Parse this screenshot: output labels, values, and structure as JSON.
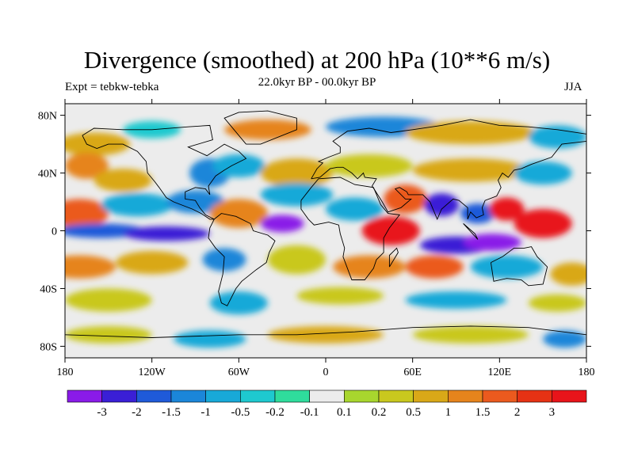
{
  "title": "Divergence (smoothed) at 200 hPa (10**6 m/s)",
  "subtitle_left": "Expt = tebkw-tebka",
  "subtitle_center": "22.0kyr BP - 00.0kyr BP",
  "subtitle_right": "JJA",
  "axes": {
    "x_ticks": [
      "180",
      "120W",
      "60W",
      "0",
      "60E",
      "120E",
      "180"
    ],
    "y_ticks": [
      "80N",
      "40N",
      "0",
      "40S",
      "80S"
    ]
  },
  "colorbar": {
    "labels": [
      "-3",
      "-2",
      "-1.5",
      "-1",
      "-0.5",
      "-0.2",
      "-0.1",
      "0.1",
      "0.2",
      "0.5",
      "1",
      "1.5",
      "2",
      "3"
    ],
    "colors": [
      "#8a1be8",
      "#3a1fd6",
      "#1f5ad9",
      "#1b86d9",
      "#18a9d8",
      "#1ec9cf",
      "#2fdc9c",
      "#ececec",
      "#a8d62e",
      "#c9c81e",
      "#d9a818",
      "#e6841c",
      "#eb5a1e",
      "#e63214",
      "#e8141a"
    ]
  },
  "colors": {
    "background": "#ececec",
    "coastline": "#000000"
  },
  "blobs": [
    {
      "lon": -160,
      "lat": 60,
      "rx": 25,
      "ry": 8,
      "c": 10
    },
    {
      "lon": -120,
      "lat": 70,
      "rx": 20,
      "ry": 6,
      "c": 5
    },
    {
      "lon": -40,
      "lat": 70,
      "rx": 30,
      "ry": 7,
      "c": 11
    },
    {
      "lon": 40,
      "lat": 72,
      "rx": 40,
      "ry": 7,
      "c": 3
    },
    {
      "lon": 100,
      "lat": 68,
      "rx": 45,
      "ry": 8,
      "c": 10
    },
    {
      "lon": 160,
      "lat": 65,
      "rx": 20,
      "ry": 8,
      "c": 4
    },
    {
      "lon": -165,
      "lat": 45,
      "rx": 15,
      "ry": 9,
      "c": 11
    },
    {
      "lon": -140,
      "lat": 35,
      "rx": 20,
      "ry": 8,
      "c": 10
    },
    {
      "lon": -80,
      "lat": 40,
      "rx": 14,
      "ry": 10,
      "c": 3
    },
    {
      "lon": -60,
      "lat": 45,
      "rx": 18,
      "ry": 8,
      "c": 4
    },
    {
      "lon": -20,
      "lat": 40,
      "rx": 25,
      "ry": 10,
      "c": 10
    },
    {
      "lon": 30,
      "lat": 45,
      "rx": 30,
      "ry": 8,
      "c": 9
    },
    {
      "lon": 100,
      "lat": 42,
      "rx": 40,
      "ry": 8,
      "c": 10
    },
    {
      "lon": 150,
      "lat": 40,
      "rx": 20,
      "ry": 8,
      "c": 4
    },
    {
      "lon": -170,
      "lat": 12,
      "rx": 20,
      "ry": 10,
      "c": 12
    },
    {
      "lon": -130,
      "lat": 18,
      "rx": 25,
      "ry": 8,
      "c": 4
    },
    {
      "lon": -90,
      "lat": 20,
      "rx": 20,
      "ry": 8,
      "c": 3
    },
    {
      "lon": -60,
      "lat": 12,
      "rx": 20,
      "ry": 10,
      "c": 11
    },
    {
      "lon": -20,
      "lat": 25,
      "rx": 25,
      "ry": 8,
      "c": 4
    },
    {
      "lon": 20,
      "lat": 15,
      "rx": 20,
      "ry": 8,
      "c": 4
    },
    {
      "lon": 55,
      "lat": 22,
      "rx": 15,
      "ry": 10,
      "c": 12
    },
    {
      "lon": 80,
      "lat": 18,
      "rx": 12,
      "ry": 8,
      "c": 1
    },
    {
      "lon": 105,
      "lat": 12,
      "rx": 12,
      "ry": 7,
      "c": 2
    },
    {
      "lon": 125,
      "lat": 15,
      "rx": 12,
      "ry": 8,
      "c": 14
    },
    {
      "lon": 150,
      "lat": 5,
      "rx": 20,
      "ry": 10,
      "c": 14
    },
    {
      "lon": -155,
      "lat": 0,
      "rx": 30,
      "ry": 5,
      "c": 2
    },
    {
      "lon": -110,
      "lat": -2,
      "rx": 30,
      "ry": 5,
      "c": 1
    },
    {
      "lon": -30,
      "lat": 5,
      "rx": 15,
      "ry": 6,
      "c": 0
    },
    {
      "lon": 45,
      "lat": 0,
      "rx": 20,
      "ry": 10,
      "c": 14
    },
    {
      "lon": 90,
      "lat": -10,
      "rx": 25,
      "ry": 6,
      "c": 1
    },
    {
      "lon": 115,
      "lat": -8,
      "rx": 20,
      "ry": 6,
      "c": 0
    },
    {
      "lon": -170,
      "lat": -25,
      "rx": 25,
      "ry": 8,
      "c": 11
    },
    {
      "lon": -120,
      "lat": -22,
      "rx": 25,
      "ry": 8,
      "c": 10
    },
    {
      "lon": -70,
      "lat": -20,
      "rx": 15,
      "ry": 8,
      "c": 3
    },
    {
      "lon": -20,
      "lat": -20,
      "rx": 20,
      "ry": 10,
      "c": 9
    },
    {
      "lon": 30,
      "lat": -25,
      "rx": 25,
      "ry": 8,
      "c": 11
    },
    {
      "lon": 75,
      "lat": -25,
      "rx": 20,
      "ry": 8,
      "c": 12
    },
    {
      "lon": 125,
      "lat": -25,
      "rx": 25,
      "ry": 8,
      "c": 4
    },
    {
      "lon": 170,
      "lat": -30,
      "rx": 15,
      "ry": 8,
      "c": 10
    },
    {
      "lon": -150,
      "lat": -48,
      "rx": 30,
      "ry": 8,
      "c": 9
    },
    {
      "lon": -60,
      "lat": -50,
      "rx": 20,
      "ry": 8,
      "c": 4
    },
    {
      "lon": 10,
      "lat": -45,
      "rx": 30,
      "ry": 6,
      "c": 9
    },
    {
      "lon": 90,
      "lat": -48,
      "rx": 35,
      "ry": 6,
      "c": 4
    },
    {
      "lon": 160,
      "lat": -50,
      "rx": 20,
      "ry": 6,
      "c": 9
    },
    {
      "lon": -150,
      "lat": -72,
      "rx": 30,
      "ry": 6,
      "c": 9
    },
    {
      "lon": -80,
      "lat": -75,
      "rx": 25,
      "ry": 6,
      "c": 4
    },
    {
      "lon": 0,
      "lat": -72,
      "rx": 40,
      "ry": 6,
      "c": 10
    },
    {
      "lon": 100,
      "lat": -72,
      "rx": 40,
      "ry": 6,
      "c": 9
    },
    {
      "lon": 165,
      "lat": -75,
      "rx": 15,
      "ry": 6,
      "c": 3
    }
  ],
  "land": [
    [
      [
        -168,
        66
      ],
      [
        -160,
        71
      ],
      [
        -140,
        70
      ],
      [
        -120,
        70
      ],
      [
        -95,
        72
      ],
      [
        -80,
        73
      ],
      [
        -78,
        63
      ],
      [
        -95,
        58
      ],
      [
        -82,
        52
      ],
      [
        -70,
        60
      ],
      [
        -60,
        55
      ],
      [
        -55,
        50
      ],
      [
        -65,
        45
      ],
      [
        -70,
        42
      ],
      [
        -76,
        38
      ],
      [
        -81,
        31
      ],
      [
        -80,
        25
      ],
      [
        -83,
        29
      ],
      [
        -90,
        30
      ],
      [
        -97,
        27
      ],
      [
        -97,
        22
      ],
      [
        -90,
        21
      ],
      [
        -87,
        16
      ],
      [
        -83,
        11
      ],
      [
        -77,
        8
      ],
      [
        -80,
        8
      ],
      [
        -86,
        12
      ],
      [
        -92,
        15
      ],
      [
        -105,
        20
      ],
      [
        -110,
        23
      ],
      [
        -115,
        30
      ],
      [
        -118,
        34
      ],
      [
        -123,
        40
      ],
      [
        -124,
        48
      ],
      [
        -130,
        55
      ],
      [
        -140,
        60
      ],
      [
        -150,
        60
      ],
      [
        -158,
        57
      ],
      [
        -165,
        60
      ],
      [
        -168,
        66
      ]
    ],
    [
      [
        -77,
        8
      ],
      [
        -72,
        12
      ],
      [
        -62,
        10
      ],
      [
        -52,
        5
      ],
      [
        -50,
        0
      ],
      [
        -40,
        -3
      ],
      [
        -35,
        -7
      ],
      [
        -39,
        -15
      ],
      [
        -41,
        -22
      ],
      [
        -48,
        -27
      ],
      [
        -58,
        -35
      ],
      [
        -62,
        -40
      ],
      [
        -65,
        -46
      ],
      [
        -68,
        -52
      ],
      [
        -72,
        -50
      ],
      [
        -74,
        -42
      ],
      [
        -71,
        -30
      ],
      [
        -70,
        -18
      ],
      [
        -76,
        -12
      ],
      [
        -81,
        -5
      ],
      [
        -80,
        2
      ],
      [
        -77,
        8
      ]
    ],
    [
      [
        -55,
        60
      ],
      [
        -45,
        60
      ],
      [
        -20,
        70
      ],
      [
        -20,
        78
      ],
      [
        -40,
        83
      ],
      [
        -60,
        82
      ],
      [
        -70,
        78
      ],
      [
        -55,
        60
      ]
    ],
    [
      [
        -10,
        36
      ],
      [
        -6,
        43
      ],
      [
        -2,
        47
      ],
      [
        -5,
        48
      ],
      [
        2,
        51
      ],
      [
        10,
        54
      ],
      [
        10,
        58
      ],
      [
        5,
        62
      ],
      [
        15,
        69
      ],
      [
        30,
        71
      ],
      [
        45,
        68
      ],
      [
        60,
        70
      ],
      [
        80,
        73
      ],
      [
        100,
        77
      ],
      [
        120,
        73
      ],
      [
        140,
        72
      ],
      [
        160,
        70
      ],
      [
        180,
        67
      ],
      [
        180,
        62
      ],
      [
        163,
        60
      ],
      [
        156,
        51
      ],
      [
        142,
        46
      ],
      [
        135,
        43
      ],
      [
        130,
        42
      ],
      [
        126,
        37
      ],
      [
        122,
        40
      ],
      [
        119,
        35
      ],
      [
        121,
        30
      ],
      [
        118,
        24
      ],
      [
        110,
        21
      ],
      [
        108,
        16
      ],
      [
        109,
        11
      ],
      [
        104,
        9
      ],
      [
        100,
        13
      ],
      [
        98,
        8
      ],
      [
        98,
        16
      ],
      [
        92,
        21
      ],
      [
        88,
        22
      ],
      [
        80,
        15
      ],
      [
        77,
        8
      ],
      [
        72,
        20
      ],
      [
        67,
        25
      ],
      [
        57,
        25
      ],
      [
        56,
        27
      ],
      [
        51,
        30
      ],
      [
        48,
        29
      ],
      [
        55,
        22
      ],
      [
        59,
        22
      ],
      [
        52,
        16
      ],
      [
        43,
        13
      ],
      [
        39,
        20
      ],
      [
        34,
        28
      ],
      [
        32,
        31
      ],
      [
        35,
        36
      ],
      [
        27,
        37
      ],
      [
        26,
        40
      ],
      [
        22,
        36
      ],
      [
        18,
        40
      ],
      [
        12,
        44
      ],
      [
        8,
        44
      ],
      [
        3,
        43
      ],
      [
        -4,
        37
      ],
      [
        -10,
        36
      ]
    ],
    [
      [
        -17,
        21
      ],
      [
        -17,
        15
      ],
      [
        -12,
        8
      ],
      [
        -8,
        4
      ],
      [
        2,
        6
      ],
      [
        9,
        4
      ],
      [
        10,
        -2
      ],
      [
        13,
        -12
      ],
      [
        12,
        -18
      ],
      [
        18,
        -34
      ],
      [
        27,
        -34
      ],
      [
        33,
        -26
      ],
      [
        35,
        -20
      ],
      [
        40,
        -15
      ],
      [
        40,
        -5
      ],
      [
        44,
        2
      ],
      [
        51,
        11
      ],
      [
        43,
        12
      ],
      [
        38,
        18
      ],
      [
        33,
        30
      ],
      [
        20,
        32
      ],
      [
        10,
        37
      ],
      [
        -5,
        36
      ],
      [
        -10,
        30
      ],
      [
        -17,
        21
      ]
    ],
    [
      [
        114,
        -22
      ],
      [
        122,
        -18
      ],
      [
        130,
        -12
      ],
      [
        137,
        -12
      ],
      [
        142,
        -11
      ],
      [
        146,
        -18
      ],
      [
        153,
        -25
      ],
      [
        150,
        -37
      ],
      [
        140,
        -38
      ],
      [
        135,
        -34
      ],
      [
        125,
        -33
      ],
      [
        116,
        -35
      ],
      [
        114,
        -22
      ]
    ],
    [
      [
        44,
        -25
      ],
      [
        50,
        -15
      ],
      [
        49,
        -12
      ],
      [
        44,
        -17
      ],
      [
        44,
        -25
      ]
    ],
    [
      [
        95,
        5
      ],
      [
        105,
        -6
      ],
      [
        103,
        -2
      ],
      [
        95,
        5
      ]
    ],
    [
      [
        -180,
        -72
      ],
      [
        -120,
        -74
      ],
      [
        -60,
        -72
      ],
      [
        -20,
        -72
      ],
      [
        20,
        -70
      ],
      [
        60,
        -67
      ],
      [
        100,
        -66
      ],
      [
        140,
        -67
      ],
      [
        180,
        -72
      ]
    ]
  ]
}
